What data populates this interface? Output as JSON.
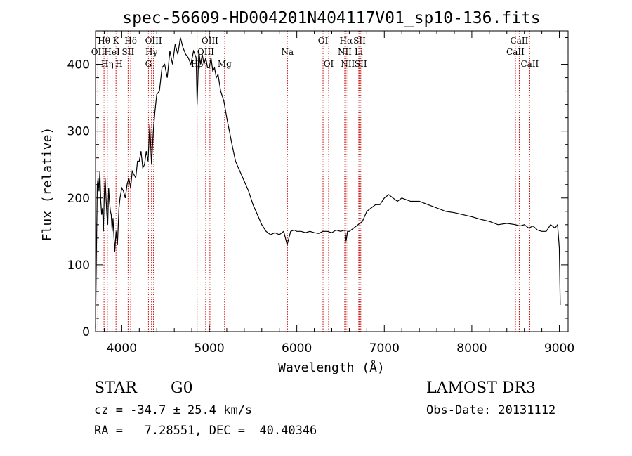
{
  "chart_data": {
    "type": "line",
    "title": "spec-56609-HD004201N404117V01_sp10-136.fits",
    "xlabel": "Wavelength (Å)",
    "ylabel": "Flux (relative)",
    "xlim": [
      3700,
      9100
    ],
    "ylim": [
      0,
      450
    ],
    "xticks": [
      4000,
      5000,
      6000,
      7000,
      8000,
      9000
    ],
    "xtick_labels": [
      "4000",
      "5000",
      "6000",
      "7000",
      "8000",
      "9000"
    ],
    "yticks": [
      0,
      100,
      200,
      300,
      400
    ],
    "ytick_labels": [
      "0",
      "100",
      "200",
      "300",
      "400"
    ],
    "series": [
      {
        "name": "flux",
        "x": [
          3700,
          3710,
          3720,
          3730,
          3740,
          3750,
          3760,
          3770,
          3780,
          3790,
          3800,
          3810,
          3820,
          3830,
          3840,
          3850,
          3860,
          3870,
          3880,
          3890,
          3900,
          3920,
          3935,
          3950,
          3968,
          3980,
          4000,
          4020,
          4040,
          4060,
          4080,
          4101,
          4120,
          4140,
          4160,
          4180,
          4200,
          4220,
          4240,
          4260,
          4280,
          4300,
          4320,
          4340,
          4360,
          4380,
          4400,
          4430,
          4460,
          4490,
          4520,
          4550,
          4580,
          4610,
          4640,
          4670,
          4700,
          4730,
          4760,
          4790,
          4820,
          4850,
          4861,
          4880,
          4900,
          4920,
          4940,
          4960,
          4980,
          5000,
          5020,
          5040,
          5060,
          5080,
          5100,
          5130,
          5167,
          5200,
          5230,
          5260,
          5300,
          5350,
          5400,
          5450,
          5500,
          5550,
          5600,
          5650,
          5700,
          5750,
          5800,
          5850,
          5890,
          5930,
          5970,
          6000,
          6050,
          6100,
          6150,
          6200,
          6250,
          6300,
          6350,
          6400,
          6450,
          6500,
          6550,
          6563,
          6580,
          6600,
          6650,
          6700,
          6750,
          6800,
          6850,
          6900,
          6950,
          7000,
          7050,
          7100,
          7150,
          7200,
          7300,
          7400,
          7500,
          7600,
          7700,
          7800,
          7900,
          8000,
          8100,
          8200,
          8300,
          8400,
          8500,
          8550,
          8600,
          8650,
          8700,
          8750,
          8800,
          8850,
          8900,
          8950,
          8980,
          9000,
          9010
        ],
        "y": [
          5,
          110,
          220,
          230,
          210,
          240,
          195,
          175,
          185,
          150,
          205,
          230,
          200,
          175,
          160,
          215,
          195,
          180,
          175,
          150,
          170,
          120,
          150,
          130,
          185,
          200,
          215,
          210,
          200,
          220,
          230,
          215,
          240,
          235,
          230,
          255,
          255,
          270,
          245,
          250,
          270,
          255,
          310,
          250,
          300,
          330,
          355,
          360,
          395,
          400,
          380,
          420,
          400,
          430,
          415,
          440,
          425,
          415,
          410,
          400,
          420,
          410,
          340,
          420,
          400,
          415,
          400,
          410,
          395,
          395,
          410,
          390,
          395,
          380,
          385,
          360,
          345,
          320,
          300,
          280,
          255,
          240,
          225,
          210,
          190,
          175,
          160,
          150,
          145,
          148,
          145,
          150,
          130,
          150,
          152,
          150,
          150,
          148,
          150,
          148,
          147,
          150,
          150,
          148,
          152,
          150,
          152,
          135,
          150,
          150,
          155,
          160,
          165,
          180,
          185,
          190,
          190,
          200,
          205,
          200,
          195,
          200,
          195,
          195,
          190,
          185,
          180,
          178,
          175,
          172,
          168,
          165,
          160,
          162,
          160,
          158,
          160,
          155,
          158,
          152,
          150,
          150,
          160,
          155,
          160,
          125,
          40
        ],
        "color": "#000000"
      }
    ],
    "lines": [
      {
        "label": "Hθ",
        "wave": 3797,
        "row": 1
      },
      {
        "label": "OII",
        "wave": 3727,
        "row": 2
      },
      {
        "label": "Hη",
        "wave": 3835,
        "row": 3
      },
      {
        "label": "K",
        "wave": 3934,
        "row": 1
      },
      {
        "label": "HeI",
        "wave": 3889,
        "row": 2
      },
      {
        "label": "H",
        "wave": 3969,
        "row": 3
      },
      {
        "label": "SII",
        "wave": 4072,
        "row": 2
      },
      {
        "label": "Hδ",
        "wave": 4102,
        "row": 1
      },
      {
        "label": "OIII",
        "wave": 4363,
        "row": 1
      },
      {
        "label": "Hγ",
        "wave": 4340,
        "row": 2
      },
      {
        "label": "G",
        "wave": 4305,
        "row": 3
      },
      {
        "label": "Hβ",
        "wave": 4861,
        "row": 3
      },
      {
        "label": "OIII",
        "wave": 5007,
        "row": 1
      },
      {
        "label": "OIII",
        "wave": 4959,
        "row": 2
      },
      {
        "label": "Mg",
        "wave": 5175,
        "row": 3
      },
      {
        "label": "Na",
        "wave": 5893,
        "row": 2
      },
      {
        "label": "OI",
        "wave": 6300,
        "row": 1
      },
      {
        "label": "OI",
        "wave": 6364,
        "row": 3
      },
      {
        "label": "Hα",
        "wave": 6563,
        "row": 1
      },
      {
        "label": "NII",
        "wave": 6548,
        "row": 2
      },
      {
        "label": "NII",
        "wave": 6583,
        "row": 3
      },
      {
        "label": "SII",
        "wave": 6717,
        "row": 1
      },
      {
        "label": "Li",
        "wave": 6708,
        "row": 2
      },
      {
        "label": "SII",
        "wave": 6731,
        "row": 3
      },
      {
        "label": "CaII",
        "wave": 8542,
        "row": 1
      },
      {
        "label": "CaII",
        "wave": 8498,
        "row": 2
      },
      {
        "label": "CaII",
        "wave": 8662,
        "row": 3
      }
    ]
  },
  "info": {
    "class": "STAR",
    "subclass": "G0",
    "survey": "LAMOST DR3",
    "cz": "cz = -34.7 ± 25.4 km/s",
    "obsdate": "Obs-Date: 20131112",
    "radec": "RA =   7.28551, DEC =  40.40346"
  }
}
